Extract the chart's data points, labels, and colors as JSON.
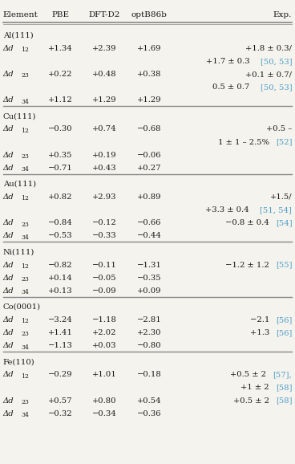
{
  "bg_color": "#f5f3ed",
  "text_color": "#1a1a1a",
  "ref_color": "#4a9cc7",
  "headers": [
    "Element",
    "PBE",
    "DFT-D2",
    "optB86b",
    "Exp."
  ],
  "sections": [
    {
      "header": "Al(111)",
      "rows": [
        {
          "label": "Δd",
          "sub": "12",
          "pbe": "+1.34",
          "dftd2": "+2.39",
          "opt": "+1.69",
          "exp": [
            {
              "t": "+1.8 ± 0.3/",
              "r": ""
            },
            {
              "t": "+1.7 ± 0.3 ",
              "r": "[50, 53]"
            }
          ]
        },
        {
          "label": "Δd",
          "sub": "23",
          "pbe": "+0.22",
          "dftd2": "+0.48",
          "opt": "+0.38",
          "exp": [
            {
              "t": "+0.1 ± 0.7/",
              "r": ""
            },
            {
              "t": "0.5 ± 0.7 ",
              "r": "[50, 53]"
            }
          ]
        },
        {
          "label": "Δd",
          "sub": "34",
          "pbe": "+1.12",
          "dftd2": "+1.29",
          "opt": "+1.29",
          "exp": []
        }
      ]
    },
    {
      "header": "Cu(111)",
      "rows": [
        {
          "label": "Δd",
          "sub": "12",
          "pbe": "−0.30",
          "dftd2": "+0.74",
          "opt": "−0.68",
          "exp": [
            {
              "t": "+0.5 –",
              "r": ""
            },
            {
              "t": "1 ± 1 – 2.5% ",
              "r": "[52]"
            }
          ]
        },
        {
          "label": "Δd",
          "sub": "23",
          "pbe": "+0.35",
          "dftd2": "+0.19",
          "opt": "−0.06",
          "exp": []
        },
        {
          "label": "Δd",
          "sub": "34",
          "pbe": "−0.71",
          "dftd2": "+0.43",
          "opt": "+0.27",
          "exp": []
        }
      ]
    },
    {
      "header": "Au(111)",
      "rows": [
        {
          "label": "Δd",
          "sub": "12",
          "pbe": "+0.82",
          "dftd2": "+2.93",
          "opt": "+0.89",
          "exp": [
            {
              "t": "+1.5/",
              "r": ""
            },
            {
              "t": "+3.3 ± 0.4 ",
              "r": "[51, 54]"
            }
          ]
        },
        {
          "label": "Δd",
          "sub": "23",
          "pbe": "−0.84",
          "dftd2": "−0.12",
          "opt": "−0.66",
          "exp": [
            {
              "t": "−0.8 ± 0.4 ",
              "r": "[54]"
            }
          ]
        },
        {
          "label": "Δd",
          "sub": "34",
          "pbe": "−0.53",
          "dftd2": "−0.33",
          "opt": "−0.44",
          "exp": []
        }
      ]
    },
    {
      "header": "Ni(111)",
      "rows": [
        {
          "label": "Δd",
          "sub": "12",
          "pbe": "−0.82",
          "dftd2": "−0.11",
          "opt": "−1.31",
          "exp": [
            {
              "t": "−1.2 ± 1.2 ",
              "r": "[55]"
            }
          ]
        },
        {
          "label": "Δd",
          "sub": "23",
          "pbe": "+0.14",
          "dftd2": "−0.05",
          "opt": "−0.35",
          "exp": []
        },
        {
          "label": "Δd",
          "sub": "34",
          "pbe": "+0.13",
          "dftd2": "−0.09",
          "opt": "+0.09",
          "exp": []
        }
      ]
    },
    {
      "header": "Co(0001)",
      "rows": [
        {
          "label": "Δd",
          "sub": "12",
          "pbe": "−3.24",
          "dftd2": "−1.18",
          "opt": "−2.81",
          "exp": [
            {
              "t": "−2.1 ",
              "r": "[56]"
            }
          ]
        },
        {
          "label": "Δd",
          "sub": "23",
          "pbe": "+1.41",
          "dftd2": "+2.02",
          "opt": "+2.30",
          "exp": [
            {
              "t": "+1.3 ",
              "r": "[56]"
            }
          ]
        },
        {
          "label": "Δd",
          "sub": "34",
          "pbe": "−1.13",
          "dftd2": "+0.03",
          "opt": "−0.80",
          "exp": []
        }
      ]
    },
    {
      "header": "Fe(110)",
      "rows": [
        {
          "label": "Δd",
          "sub": "12",
          "pbe": "−0.29",
          "dftd2": "+1.01",
          "opt": "−0.18",
          "exp": [
            {
              "t": "+0.5 ± 2 ",
              "r": "[57],"
            },
            {
              "t": "+1 ± 2 ",
              "r": "[58]"
            }
          ]
        },
        {
          "label": "Δd",
          "sub": "23",
          "pbe": "+0.57",
          "dftd2": "+0.80",
          "opt": "+0.54",
          "exp": [
            {
              "t": "+0.5 ± 2 ",
              "r": "[58]"
            }
          ]
        },
        {
          "label": "Δd",
          "sub": "34",
          "pbe": "−0.32",
          "dftd2": "−0.34",
          "opt": "−0.36",
          "exp": []
        }
      ]
    }
  ]
}
